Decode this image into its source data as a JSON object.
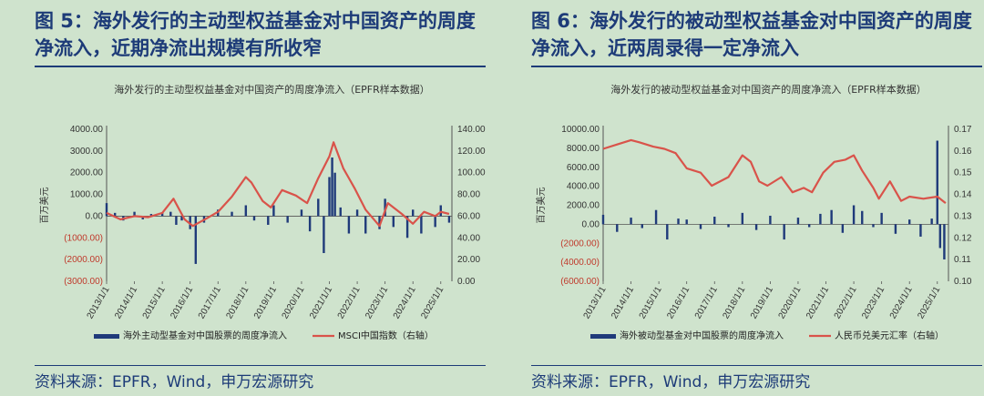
{
  "charts": [
    {
      "figure_title": "图 5：海外发行的主动型权益基金对中国资产的周度净流入，近期净流出规模有所收窄",
      "source": "资料来源：EPFR，Wind，申万宏源研究",
      "chart_data": {
        "type": "bar+line",
        "title": "海外发行的主动型权益基金对中国资产的周度净流入（EPFR样本数据）",
        "ylabel": "百万美元",
        "ylim": [
          -3000,
          4000
        ],
        "y2lim": [
          0,
          140
        ],
        "y_ticks": [
          "4000.00",
          "3000.00",
          "2000.00",
          "1000.00",
          "0.00",
          "(1000.00)",
          "(2000.00)",
          "(3000.00)"
        ],
        "y2_ticks": [
          "140.00",
          "120.00",
          "100.00",
          "80.00",
          "60.00",
          "40.00",
          "20.00",
          "0.00"
        ],
        "x_ticks": [
          "2013/1/1",
          "2014/1/1",
          "2015/1/1",
          "2016/1/1",
          "2017/1/1",
          "2018/1/1",
          "2019/1/1",
          "2020/1/1",
          "2021/1/1",
          "2022/1/1",
          "2023/1/1",
          "2024/1/1",
          "2025/1/1"
        ],
        "grid": false,
        "legend_placement": "bottom",
        "series": [
          {
            "name": "海外主动型基金对中国股票的周度净流入",
            "type": "bar",
            "color": "#1f3a7a",
            "x": [
              2013.0,
              2013.3,
              2013.6,
              2014.0,
              2014.3,
              2014.6,
              2015.0,
              2015.3,
              2015.5,
              2015.7,
              2016.0,
              2016.2,
              2016.5,
              2017.0,
              2017.5,
              2018.0,
              2018.3,
              2018.8,
              2019.0,
              2019.5,
              2020.0,
              2020.3,
              2020.6,
              2020.8,
              2021.0,
              2021.1,
              2021.2,
              2021.4,
              2021.7,
              2022.0,
              2022.3,
              2022.8,
              2023.0,
              2023.3,
              2023.8,
              2024.0,
              2024.3,
              2024.8,
              2025.0,
              2025.3
            ],
            "values": [
              600,
              150,
              -200,
              200,
              -150,
              100,
              150,
              200,
              -400,
              -200,
              -600,
              -2200,
              -300,
              300,
              200,
              500,
              -200,
              -400,
              500,
              -300,
              300,
              -700,
              800,
              -1700,
              1800,
              2700,
              2000,
              400,
              -800,
              300,
              -800,
              -600,
              800,
              -500,
              -1000,
              300,
              -800,
              -500,
              500,
              -300
            ]
          },
          {
            "name": "MSCI中国指数（右轴）",
            "type": "line",
            "axis": "right",
            "color": "#d9534a",
            "x": [
              2013.0,
              2013.5,
              2014.0,
              2014.5,
              2015.0,
              2015.4,
              2015.8,
              2016.1,
              2016.6,
              2017.0,
              2017.5,
              2018.0,
              2018.2,
              2018.6,
              2018.9,
              2019.3,
              2019.8,
              2020.2,
              2020.6,
              2021.0,
              2021.15,
              2021.5,
              2021.9,
              2022.3,
              2022.8,
              2023.1,
              2023.6,
              2024.0,
              2024.4,
              2024.8,
              2025.0,
              2025.3
            ],
            "values": [
              63,
              57,
              60,
              59,
              63,
              76,
              57,
              51,
              58,
              64,
              78,
              96,
              91,
              74,
              68,
              84,
              79,
              72,
              95,
              115,
              128,
              104,
              86,
              66,
              51,
              72,
              62,
              53,
              64,
              60,
              64,
              62
            ]
          }
        ]
      }
    },
    {
      "figure_title": "图 6：海外发行的被动型权益基金对中国资产的周度净流入，近两周录得一定净流入",
      "source": "资料来源：EPFR，Wind，申万宏源研究",
      "chart_data": {
        "type": "bar+line",
        "title": "海外发行的被动型权益基金对中国资产的周度净流入（EPFR样本数据）",
        "ylabel": "百万美元",
        "ylim": [
          -6000,
          10000
        ],
        "y2lim": [
          0.1,
          0.17
        ],
        "y_ticks": [
          "10000.00",
          "8000.00",
          "6000.00",
          "4000.00",
          "2000.00",
          "0.00",
          "(2000.00)",
          "(4000.00)",
          "(6000.00)"
        ],
        "y2_ticks": [
          "0.17",
          "0.16",
          "0.15",
          "0.14",
          "0.13",
          "0.12",
          "0.11",
          "0.10"
        ],
        "x_ticks": [
          "2013/1/1",
          "2014/1/1",
          "2015/1/1",
          "2016/1/1",
          "2017/1/1",
          "2018/1/1",
          "2019/1/1",
          "2020/1/1",
          "2021/1/1",
          "2022/1/1",
          "2023/1/1",
          "2024/1/1",
          "2025/1/1"
        ],
        "grid": false,
        "legend_placement": "bottom",
        "series": [
          {
            "name": "海外被动型基金对中国股票的周度净流入",
            "type": "bar",
            "color": "#1f3a7a",
            "x": [
              2013.0,
              2013.5,
              2014.0,
              2014.4,
              2014.9,
              2015.3,
              2015.7,
              2016.0,
              2016.5,
              2017.0,
              2017.5,
              2018.0,
              2018.5,
              2019.0,
              2019.5,
              2020.0,
              2020.4,
              2020.8,
              2021.2,
              2021.6,
              2022.0,
              2022.3,
              2022.7,
              2023.0,
              2023.5,
              2024.0,
              2024.4,
              2024.8,
              2025.0,
              2025.1,
              2025.25
            ],
            "values": [
              1000,
              -800,
              700,
              -400,
              1500,
              -1600,
              600,
              500,
              -500,
              800,
              -300,
              1200,
              -600,
              900,
              -1600,
              700,
              -300,
              1100,
              1500,
              -900,
              2000,
              1400,
              -300,
              1200,
              -1000,
              500,
              -1300,
              600,
              8800,
              -2500,
              -3700
            ]
          },
          {
            "name": "人民币兑美元汇率（右轴）",
            "type": "line",
            "axis": "right",
            "color": "#d9534a",
            "x": [
              2013.0,
              2013.5,
              2014.0,
              2014.3,
              2014.8,
              2015.2,
              2015.6,
              2016.0,
              2016.5,
              2016.9,
              2017.5,
              2018.0,
              2018.3,
              2018.6,
              2018.9,
              2019.4,
              2019.8,
              2020.2,
              2020.5,
              2020.9,
              2021.3,
              2021.7,
              2022.0,
              2022.3,
              2022.7,
              2022.9,
              2023.3,
              2023.7,
              2024.0,
              2024.5,
              2025.0,
              2025.3
            ],
            "values": [
              0.161,
              0.163,
              0.165,
              0.164,
              0.162,
              0.161,
              0.159,
              0.152,
              0.15,
              0.144,
              0.148,
              0.158,
              0.155,
              0.146,
              0.144,
              0.148,
              0.141,
              0.143,
              0.141,
              0.15,
              0.155,
              0.156,
              0.158,
              0.151,
              0.143,
              0.138,
              0.146,
              0.137,
              0.139,
              0.138,
              0.139,
              0.136
            ]
          }
        ]
      }
    }
  ]
}
